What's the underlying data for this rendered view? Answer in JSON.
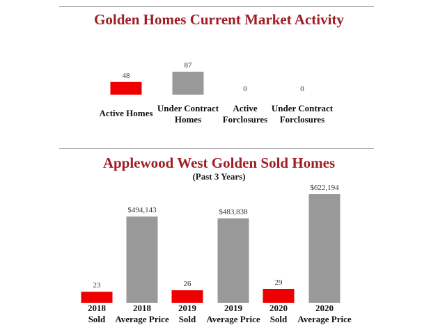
{
  "chart_data": [
    {
      "type": "bar",
      "title": "Golden Homes Current Market Activity",
      "categories": [
        "Active Homes",
        "Under Contract Homes",
        "Active Forclosures",
        "Under Contract Forclosures"
      ],
      "category_lines": [
        [
          "Active Homes"
        ],
        [
          "Under Contract",
          "Homes"
        ],
        [
          "Active",
          "Forclosures"
        ],
        [
          "Under Contract",
          "Forclosures"
        ]
      ],
      "values": [
        48,
        87,
        0,
        0
      ],
      "value_labels": [
        "48",
        "87",
        "0",
        "0"
      ],
      "colors": [
        "#ee0000",
        "#999999",
        "#999999",
        "#999999"
      ],
      "ylim": [
        0,
        100
      ]
    },
    {
      "type": "bar",
      "title": "Applewood West Golden Sold Homes",
      "subtitle": "(Past 3 Years)",
      "categories": [
        "2018 Sold",
        "2018 Average Price",
        "2019 Sold",
        "2019 Average Price",
        "2020 Sold",
        "2020 Average Price"
      ],
      "category_lines": [
        [
          "2018",
          "Sold"
        ],
        [
          "2018",
          "Average Price"
        ],
        [
          "2019",
          "Sold"
        ],
        [
          "2019",
          "Average Price"
        ],
        [
          "2020",
          "Sold"
        ],
        [
          "2020",
          "Average Price"
        ]
      ],
      "values": [
        23,
        494143,
        26,
        483838,
        29,
        622194
      ],
      "value_labels": [
        "23",
        "$494,143",
        "26",
        "$483,838",
        "29",
        "$622,194"
      ],
      "colors": [
        "#ee0000",
        "#999999",
        "#ee0000",
        "#999999",
        "#ee0000",
        "#999999"
      ],
      "series_axes": {
        "sold_max": 130,
        "price_max": 622194
      }
    }
  ]
}
